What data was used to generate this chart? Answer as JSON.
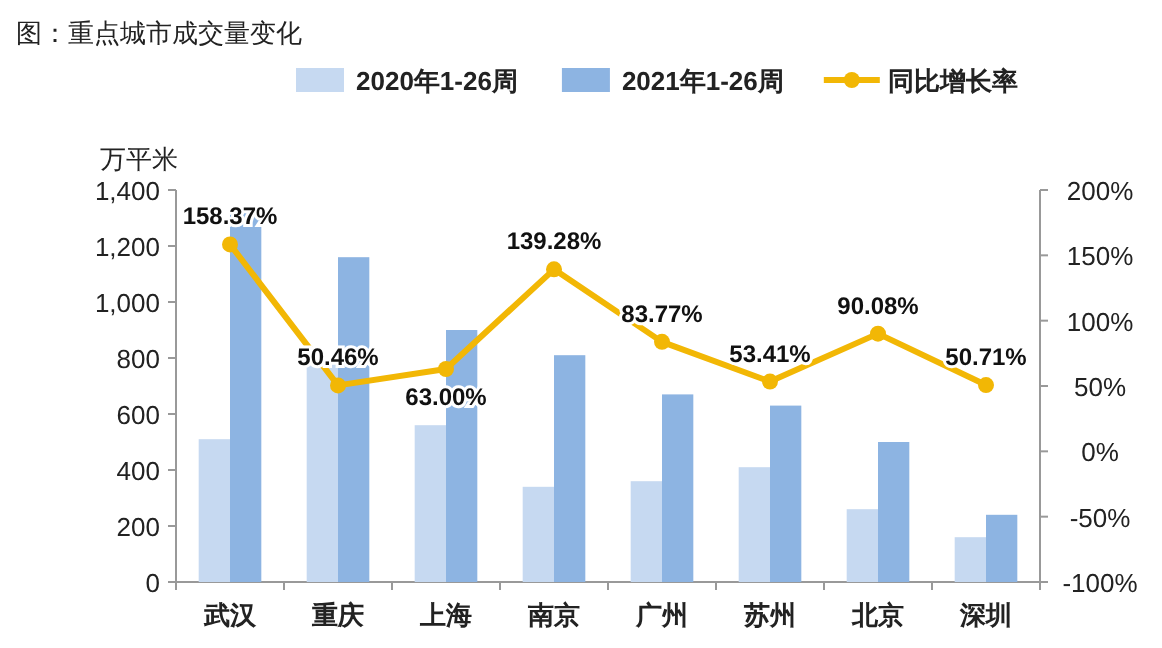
{
  "chart_data": {
    "type": "bar",
    "title": "图：重点城市成交量变化",
    "ylabel": "万平米",
    "categories": [
      "武汉",
      "重庆",
      "上海",
      "南京",
      "广州",
      "苏州",
      "北京",
      "深圳"
    ],
    "series": [
      {
        "name": "2020年1-26周",
        "color": "#c6d9f1",
        "values": [
          510,
          790,
          560,
          340,
          360,
          410,
          260,
          160
        ]
      },
      {
        "name": "2021年1-26周",
        "color": "#8db4e2",
        "values": [
          1320,
          1160,
          900,
          810,
          670,
          630,
          500,
          240
        ]
      },
      {
        "name": "同比增长率",
        "type": "line",
        "axis": "y2",
        "color": "#f2b705",
        "marker": "circle",
        "values": [
          158.37,
          50.46,
          63.0,
          139.28,
          83.77,
          53.41,
          90.08,
          50.71
        ],
        "value_labels": [
          "158.37%",
          "50.46%",
          "63.00%",
          "139.28%",
          "83.77%",
          "53.41%",
          "90.08%",
          "50.71%"
        ]
      }
    ],
    "ylim": [
      0,
      1400
    ],
    "yticks": [
      0,
      {
        "value": 200,
        "label": "200"
      },
      {
        "value": 400,
        "label": "400"
      },
      {
        "value": 600,
        "label": "600"
      },
      {
        "value": 800,
        "label": "800"
      },
      {
        "value": 1000,
        "label": "1,000"
      },
      {
        "value": 1200,
        "label": "1,200"
      },
      {
        "value": 1400,
        "label": "1,400"
      }
    ],
    "y2lim": [
      -100,
      200
    ],
    "y2ticks": [
      {
        "value": -100,
        "label": "-100%"
      },
      {
        "value": -50,
        "label": "-50%"
      },
      {
        "value": 0,
        "label": "0%"
      },
      {
        "value": 50,
        "label": "50%"
      },
      {
        "value": 100,
        "label": "100%"
      },
      {
        "value": 150,
        "label": "150%"
      },
      {
        "value": 200,
        "label": "200%"
      }
    ],
    "legend": "top",
    "grid": false
  }
}
